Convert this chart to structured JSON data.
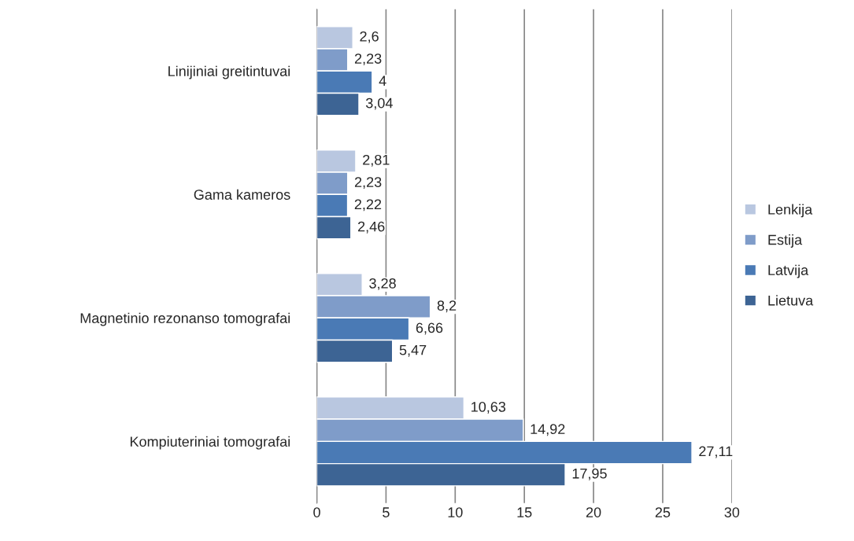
{
  "chart_data": {
    "type": "bar",
    "orientation": "horizontal",
    "categories": [
      "Linijiniai greitintuvai",
      "Gama kameros",
      "Magnetinio rezonanso tomografai",
      "Kompiuteriniai tomografai"
    ],
    "series": [
      {
        "name": "Lenkija",
        "color": "#b9c7e0",
        "values": [
          2.6,
          2.81,
          3.28,
          10.63
        ],
        "value_labels": [
          "2,6",
          "2,81",
          "3,28",
          "10,63"
        ]
      },
      {
        "name": "Estija",
        "color": "#7f9cc9",
        "values": [
          2.23,
          2.23,
          8.2,
          14.92
        ],
        "value_labels": [
          "2,23",
          "2,23",
          "8,2",
          "14,92"
        ]
      },
      {
        "name": "Latvija",
        "color": "#4a7ab5",
        "values": [
          4,
          2.22,
          6.66,
          27.11
        ],
        "value_labels": [
          "4",
          "2,22",
          "6,66",
          "27,11"
        ]
      },
      {
        "name": "Lietuva",
        "color": "#3d6494",
        "values": [
          3.04,
          2.46,
          5.47,
          17.95
        ],
        "value_labels": [
          "3,04",
          "2,46",
          "5,47",
          "17,95"
        ]
      }
    ],
    "xlim": [
      0,
      30
    ],
    "xticks": [
      0,
      5,
      10,
      15,
      20,
      25,
      30
    ],
    "grid": "x",
    "legend": "right"
  }
}
